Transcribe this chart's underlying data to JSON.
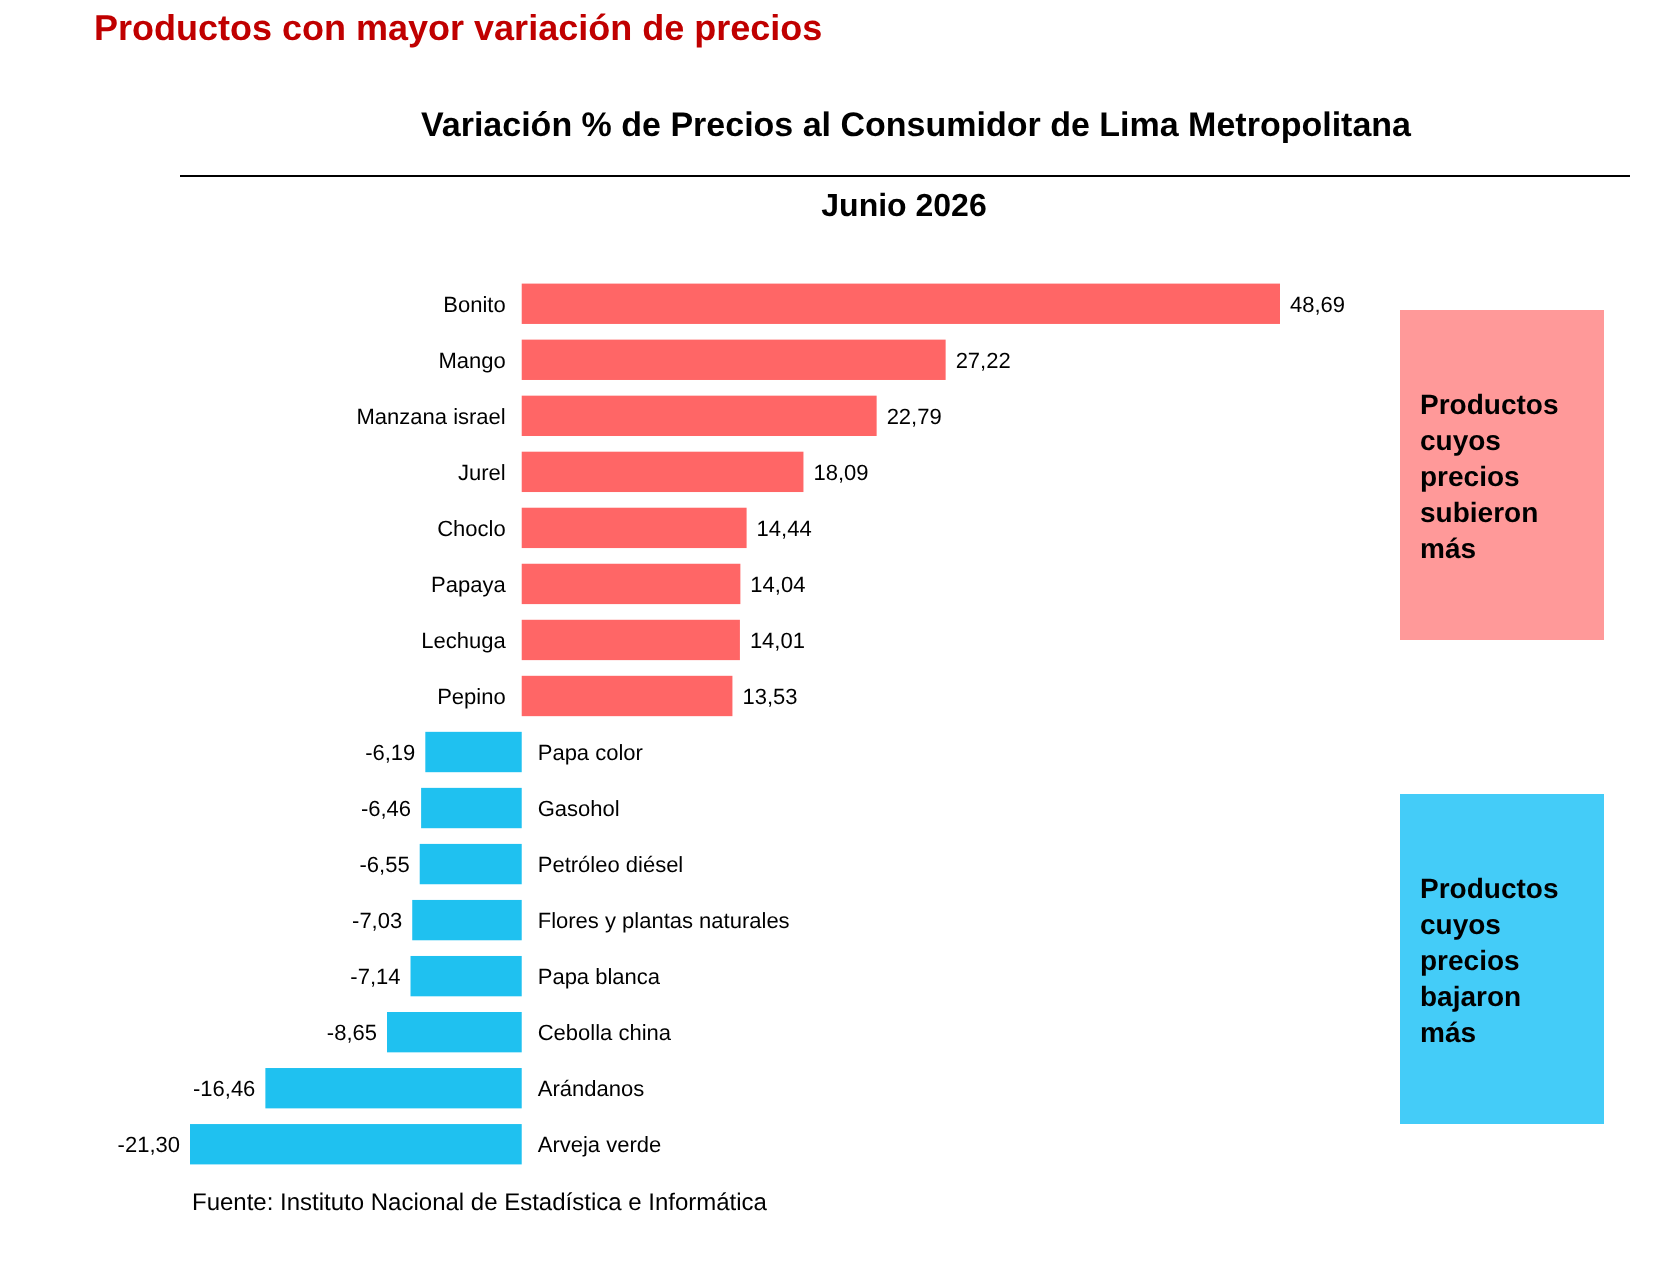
{
  "chart_data": {
    "type": "bar",
    "orientation": "horizontal",
    "relative": false,
    "value_labels": [
      "48,69",
      "27,22",
      "22,79",
      "18,09",
      "14,44",
      "14,04",
      "14,01",
      "13,53",
      "-6,19",
      "-6,46",
      "-6,55",
      "-7,03",
      "-7,14",
      "-8,65",
      "-16,46",
      "-21,30"
    ],
    "title": "Productos con mayor variación de precios",
    "subtitle": "Variación %  de Precios al Consumidor de Lima Metropolitana",
    "annotations": [
      "Junio 2026",
      "Productos cuyos precios subieron más",
      "Productos cuyos precios bajaron más",
      "Fuente: Instituto Nacional de Estadística e Informática"
    ],
    "categories": [
      "Bonito",
      "Mango",
      "Manzana israel",
      "Jurel",
      "Choclo",
      "Papaya",
      "Lechuga",
      "Pepino",
      "Papa color",
      "Gasohol",
      "Petróleo diésel",
      "Flores y plantas naturales",
      "Papa blanca",
      "Cebolla china",
      "Arándanos",
      "Arveja verde"
    ],
    "values": [
      48.69,
      27.22,
      22.79,
      18.09,
      14.44,
      14.04,
      14.01,
      13.53,
      -6.19,
      -6.46,
      -6.55,
      -7.03,
      -7.14,
      -8.65,
      -16.46,
      -21.3
    ],
    "colors": [
      "#ff6666",
      "#ff6666",
      "#ff6666",
      "#ff6666",
      "#ff6666",
      "#ff6666",
      "#ff6666",
      "#ff6666",
      "#1fc1f0",
      "#1fc1f0",
      "#1fc1f0",
      "#1fc1f0",
      "#1fc1f0",
      "#1fc1f0",
      "#1fc1f0",
      "#1fc1f0"
    ]
  }
}
